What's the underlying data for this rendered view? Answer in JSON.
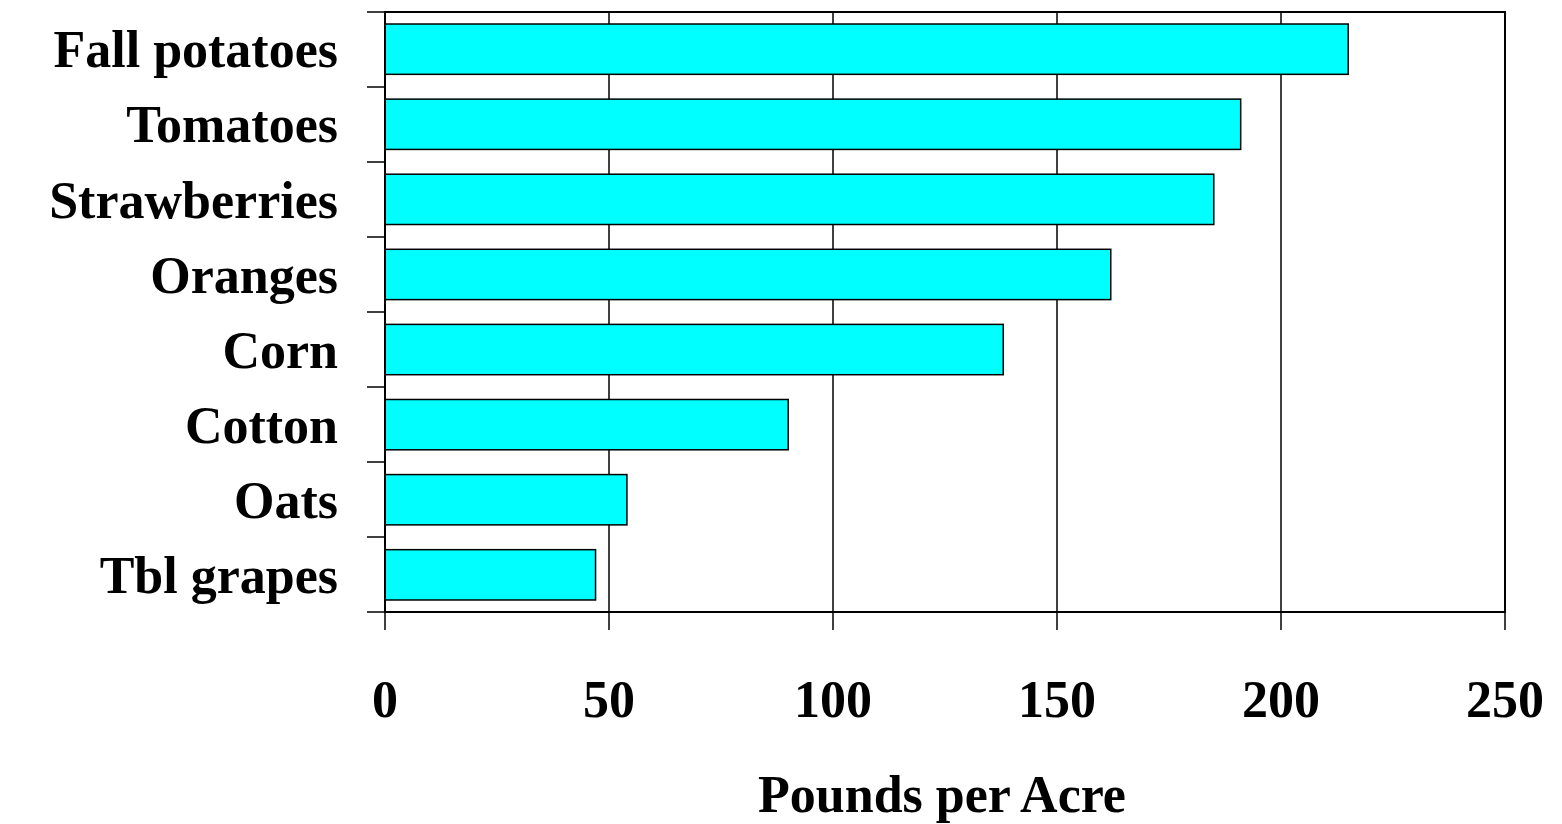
{
  "chart_data": {
    "type": "bar",
    "orientation": "horizontal",
    "xlabel": "Pounds per Acre",
    "categories": [
      "Fall potatoes",
      "Tomatoes",
      "Strawberries",
      "Oranges",
      "Corn",
      "Cotton",
      "Oats",
      "Tbl grapes"
    ],
    "values": [
      215,
      191,
      185,
      162,
      138,
      90,
      54,
      47
    ],
    "color": "#00ffff",
    "xlim": [
      0,
      250
    ],
    "xticks": [
      0,
      50,
      100,
      150,
      200,
      250
    ],
    "grid": "x"
  }
}
